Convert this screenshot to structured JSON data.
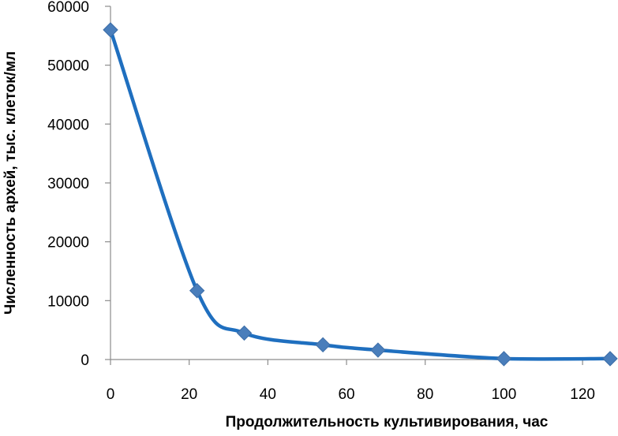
{
  "chart_data": {
    "type": "line",
    "title": "",
    "xlabel": "Продолжительность  культивирования,  час",
    "ylabel": "Численность архей, тыс. клеток/мл",
    "xlim": [
      0,
      127
    ],
    "ylim": [
      0,
      60000
    ],
    "xticks": [
      0,
      20,
      40,
      60,
      80,
      100,
      120
    ],
    "yticks": [
      0,
      10000,
      20000,
      30000,
      40000,
      50000,
      60000
    ],
    "xtick_labels": [
      "0",
      "20",
      "40",
      "60",
      "80",
      "100",
      "120"
    ],
    "ytick_labels": [
      "0",
      "10000",
      "20000",
      "30000",
      "40000",
      "50000",
      "60000"
    ],
    "grid": false,
    "smooth": true,
    "series": [
      {
        "x": [
          0,
          22,
          34,
          54,
          68,
          100,
          127
        ],
        "y": [
          56000,
          11700,
          4500,
          2500,
          1600,
          150,
          150
        ]
      }
    ],
    "colors": {
      "line": "#1f6fbf",
      "marker": "#4a7ebb",
      "axis": "#8c8c8c"
    }
  }
}
